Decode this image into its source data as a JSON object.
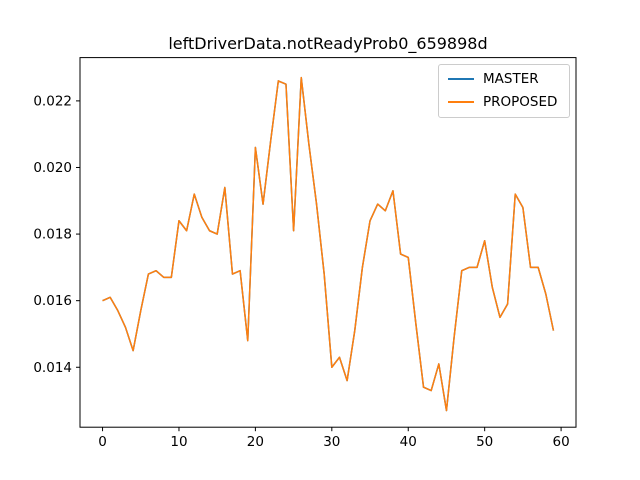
{
  "figure": {
    "title": "leftDriverData.notReadyProb0_659898d"
  },
  "chart_data": {
    "type": "line",
    "title": "leftDriverData.notReadyProb0_659898d",
    "xlabel": "",
    "ylabel": "",
    "xlim": [
      -2.95,
      61.95
    ],
    "ylim": [
      0.0122,
      0.0233
    ],
    "xticks": [
      0,
      10,
      20,
      30,
      40,
      50,
      60
    ],
    "yticks": [
      0.014,
      0.016,
      0.018,
      0.02,
      0.022
    ],
    "ytick_decimals": 3,
    "grid": false,
    "legend_position": "upper right",
    "line_width": 1.5,
    "x": [
      0,
      1,
      2,
      3,
      4,
      5,
      6,
      7,
      8,
      9,
      10,
      11,
      12,
      13,
      14,
      15,
      16,
      17,
      18,
      19,
      20,
      21,
      22,
      23,
      24,
      25,
      26,
      27,
      28,
      29,
      30,
      31,
      32,
      33,
      34,
      35,
      36,
      37,
      38,
      39,
      40,
      41,
      42,
      43,
      44,
      45,
      46,
      47,
      48,
      49,
      50,
      51,
      52,
      53,
      54,
      55,
      56,
      57,
      58,
      59
    ],
    "series": [
      {
        "name": "MASTER",
        "color": "#1f77b4",
        "values": [
          0.016,
          0.0161,
          0.0157,
          0.0152,
          0.0145,
          0.0157,
          0.0168,
          0.0169,
          0.0167,
          0.0167,
          0.0184,
          0.0181,
          0.0192,
          0.0185,
          0.0181,
          0.018,
          0.0194,
          0.0168,
          0.0169,
          0.0148,
          0.0206,
          0.0189,
          0.0208,
          0.0226,
          0.0225,
          0.0181,
          0.0227,
          0.0207,
          0.0189,
          0.0168,
          0.014,
          0.0143,
          0.0136,
          0.0151,
          0.017,
          0.0184,
          0.0189,
          0.0187,
          0.0193,
          0.0174,
          0.0173,
          0.0153,
          0.0134,
          0.0133,
          0.0141,
          0.0127,
          0.0149,
          0.0169,
          0.017,
          0.017,
          0.0178,
          0.0164,
          0.0155,
          0.0159,
          0.0192,
          0.0188,
          0.017,
          0.017,
          0.0162,
          0.0151
        ]
      },
      {
        "name": "PROPOSED",
        "color": "#ff7f0e",
        "values": [
          0.016,
          0.0161,
          0.0157,
          0.0152,
          0.0145,
          0.0157,
          0.0168,
          0.0169,
          0.0167,
          0.0167,
          0.0184,
          0.0181,
          0.0192,
          0.0185,
          0.0181,
          0.018,
          0.0194,
          0.0168,
          0.0169,
          0.0148,
          0.0206,
          0.0189,
          0.0208,
          0.0226,
          0.0225,
          0.0181,
          0.0227,
          0.0207,
          0.0189,
          0.0168,
          0.014,
          0.0143,
          0.0136,
          0.0151,
          0.017,
          0.0184,
          0.0189,
          0.0187,
          0.0193,
          0.0174,
          0.0173,
          0.0153,
          0.0134,
          0.0133,
          0.0141,
          0.0127,
          0.0149,
          0.0169,
          0.017,
          0.017,
          0.0178,
          0.0164,
          0.0155,
          0.0159,
          0.0192,
          0.0188,
          0.017,
          0.017,
          0.0162,
          0.0151
        ]
      }
    ]
  }
}
